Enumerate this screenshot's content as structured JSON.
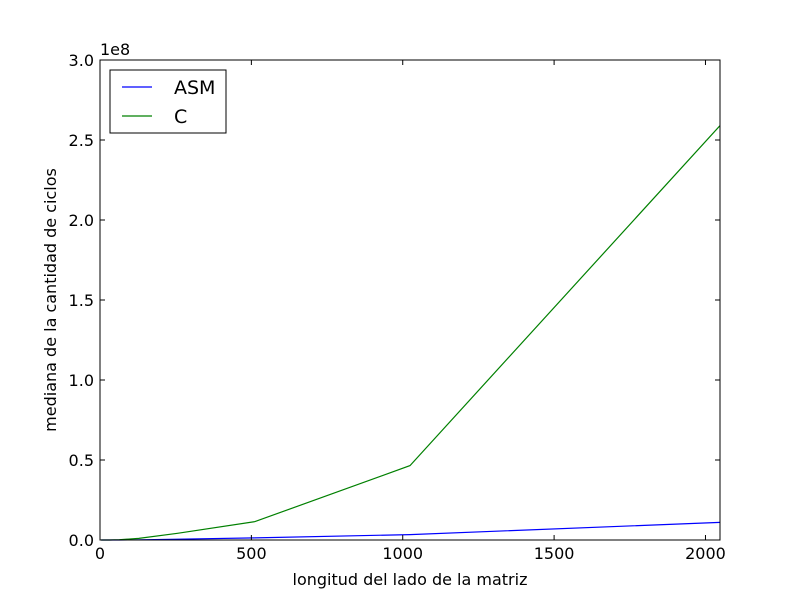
{
  "chart_data": {
    "type": "line",
    "title": "",
    "xlabel": "longitud del lado de la matriz",
    "ylabel": "mediana de la cantidad de ciclos",
    "y_offset_label": "1e8",
    "xlim": [
      0,
      2048
    ],
    "ylim": [
      0,
      3.0
    ],
    "x_ticks": [
      0,
      500,
      1000,
      1500,
      2000
    ],
    "x_tick_labels": [
      "0",
      "500",
      "1000",
      "1500",
      "2000"
    ],
    "y_ticks": [
      0,
      0.5,
      1.0,
      1.5,
      2.0,
      2.5,
      3.0
    ],
    "y_tick_labels": [
      "0.0",
      "0.5",
      "1.0",
      "1.5",
      "2.0",
      "2.5",
      "3.0"
    ],
    "grid": false,
    "legend_position": "top-left",
    "series": [
      {
        "name": "ASM",
        "color": "#0000ff",
        "x": [
          4,
          8,
          16,
          32,
          64,
          128,
          256,
          512,
          1024,
          2048
        ],
        "y": [
          0,
          0,
          0,
          0,
          0,
          0.001,
          0.005,
          0.013,
          0.034,
          0.11
        ]
      },
      {
        "name": "C",
        "color": "#008000",
        "x": [
          4,
          8,
          16,
          32,
          64,
          128,
          256,
          512,
          1024,
          2048
        ],
        "y": [
          0,
          0,
          0,
          0,
          0.002,
          0.01,
          0.042,
          0.115,
          0.465,
          2.59
        ]
      }
    ]
  }
}
